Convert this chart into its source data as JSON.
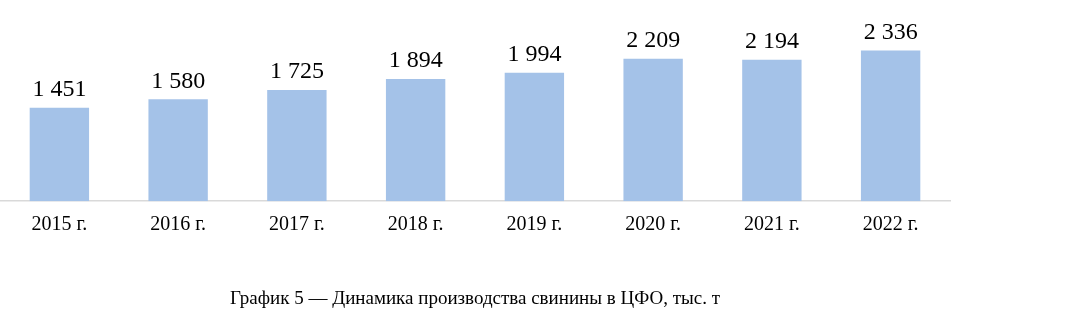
{
  "chart_data": {
    "type": "bar",
    "title": "График 5 — Динамика производства свинины в ЦФО, тыс. т",
    "categories": [
      "2015 г.",
      "2016 г.",
      "2017 г.",
      "2018 г.",
      "2019 г.",
      "2020 г.",
      "2021 г.",
      "2022 г."
    ],
    "values": [
      1451,
      1580,
      1725,
      1894,
      1994,
      2209,
      2194,
      2336
    ],
    "value_labels": [
      "1 451",
      "1 580",
      "1 725",
      "1 894",
      "1 994",
      "2 209",
      "2 194",
      "2 336"
    ],
    "color": "#a4c2e8",
    "tick_labels": "x",
    "grid": false,
    "legend": false
  }
}
